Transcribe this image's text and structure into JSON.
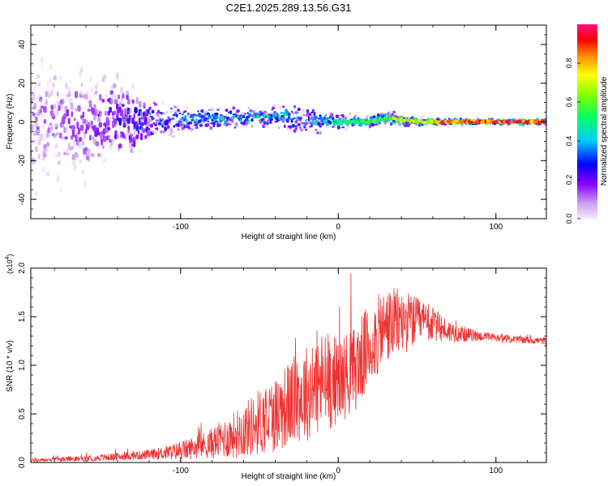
{
  "title": "C2E1.2025.289.13.56.G31",
  "chart_data": [
    {
      "type": "heatmap",
      "title": "C2E1.2025.289.13.56.G31",
      "xlabel": "Height of straight line (km)",
      "ylabel": "Frequency (Hz)",
      "xlim": [
        -195,
        132
      ],
      "ylim": [
        -50,
        50
      ],
      "xticks": [
        -100,
        0,
        100
      ],
      "yticks": [
        -40,
        -20,
        0,
        20,
        40
      ],
      "colorbar": {
        "label": "Normalized spectral amplitude",
        "range": [
          0,
          1
        ],
        "ticks": [
          "0.0",
          "0.2",
          "0.4",
          "0.6",
          "0.8"
        ],
        "colors": [
          "#e8d6f8",
          "#8800ff",
          "#0000ff",
          "#00ffff",
          "#00ff00",
          "#ffff00",
          "#ff0000",
          "#ff1493"
        ]
      },
      "band_profile": {
        "x": [
          -195,
          -160,
          -140,
          -120,
          -100,
          -80,
          -60,
          -40,
          -20,
          0,
          20,
          30,
          50,
          70,
          90,
          110,
          132
        ],
        "center_hz": [
          0,
          0,
          0,
          0,
          1,
          2,
          2,
          3,
          1,
          0,
          0,
          2,
          0,
          0,
          0,
          0,
          0
        ],
        "spread_hz": [
          45,
          40,
          30,
          16,
          9,
          8,
          8,
          8,
          10,
          5,
          4,
          6,
          3,
          2,
          2,
          2,
          2
        ],
        "peak_amplitude": [
          0.12,
          0.15,
          0.22,
          0.3,
          0.35,
          0.38,
          0.42,
          0.45,
          0.4,
          0.5,
          0.55,
          0.6,
          0.75,
          0.85,
          0.95,
          0.95,
          0.9
        ]
      }
    },
    {
      "type": "line",
      "xlabel": "Height of straight line (km)",
      "ylabel": "SNR (10 * v/v)",
      "y_multiplier": "(x10",
      "y_multiplier_exp": "4",
      "y_multiplier_close": ")",
      "xlim": [
        -195,
        132
      ],
      "ylim": [
        0,
        2.0
      ],
      "xticks": [
        -100,
        0,
        100
      ],
      "yticks": [
        "0.0",
        "0.5",
        "1.0",
        "1.5",
        "2.0"
      ],
      "color": "#ee3333",
      "series": [
        {
          "name": "SNR",
          "x": [
            -195,
            -180,
            -160,
            -140,
            -120,
            -110,
            -100,
            -90,
            -80,
            -70,
            -60,
            -50,
            -40,
            -30,
            -20,
            -10,
            0,
            10,
            20,
            30,
            40,
            50,
            60,
            70,
            80,
            90,
            100,
            110,
            120,
            132
          ],
          "values": [
            0.02,
            0.03,
            0.04,
            0.06,
            0.08,
            0.1,
            0.12,
            0.16,
            0.2,
            0.26,
            0.33,
            0.42,
            0.5,
            0.62,
            0.72,
            0.82,
            0.85,
            0.95,
            1.2,
            1.4,
            1.45,
            1.45,
            1.42,
            1.35,
            1.32,
            1.3,
            1.28,
            1.27,
            1.26,
            1.25
          ],
          "noise": [
            0.02,
            0.02,
            0.03,
            0.04,
            0.05,
            0.07,
            0.1,
            0.12,
            0.16,
            0.22,
            0.28,
            0.35,
            0.4,
            0.45,
            0.5,
            0.55,
            0.45,
            0.45,
            0.45,
            0.4,
            0.35,
            0.25,
            0.18,
            0.12,
            0.08,
            0.05,
            0.04,
            0.04,
            0.04,
            0.04
          ]
        }
      ]
    }
  ]
}
